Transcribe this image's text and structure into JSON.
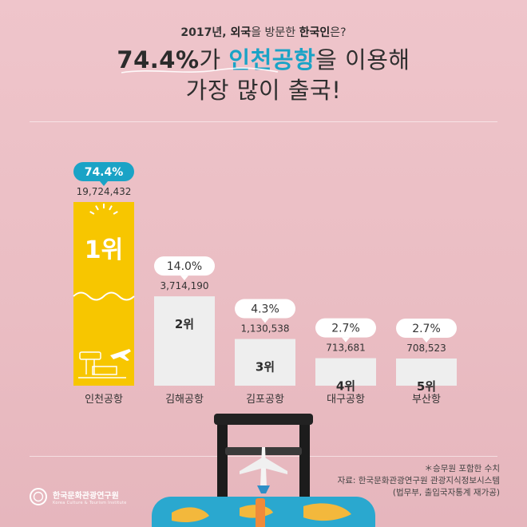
{
  "header": {
    "subtitle_a": "2017년, ",
    "subtitle_b": "외국",
    "subtitle_c": "을 방문한 ",
    "subtitle_d": "한국인",
    "subtitle_e": "은?",
    "headline_pct": "74.4%",
    "headline_mid": "가 ",
    "headline_hl": "인천공항",
    "headline_tail": "을 이용해",
    "headline_line2": "가장 많이 출국!"
  },
  "chart_data": {
    "type": "bar",
    "categories": [
      "인천공항",
      "김해공항",
      "김포공항",
      "대구공항",
      "부산항"
    ],
    "values": [
      19724432,
      3714190,
      1130538,
      713681,
      708523
    ],
    "value_labels": [
      "19,724,432",
      "3,714,190",
      "1,130,538",
      "713,681",
      "708,523"
    ],
    "shares": [
      "74.4%",
      "14.0%",
      "4.3%",
      "2.7%",
      "2.7%"
    ],
    "ranks": [
      "1위",
      "2위",
      "3위",
      "4위",
      "5위"
    ],
    "title": "",
    "xlabel": "",
    "ylabel": "",
    "colors": {
      "highlight": "#f7c600",
      "bar": "#eeeeee",
      "badge_active": "#1aa3c6",
      "badge": "#ffffff"
    }
  },
  "notes": {
    "line1": "＊승무원 포함한 수치",
    "line2": "자료: 한국문화관광연구원 관광지식정보시스템",
    "line3": "(법무부, 출입국자통계 재가공)"
  },
  "logo": {
    "name_ko": "한국문화관광연구원",
    "name_en": "Korea Culture & Tourism Institute"
  }
}
